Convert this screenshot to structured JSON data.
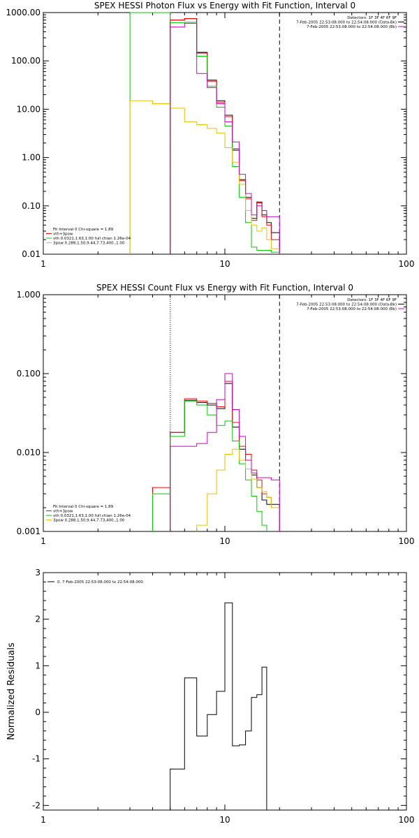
{
  "chart_data": [
    {
      "type": "line",
      "title": "SPEX HESSI Photon Flux vs Energy with Fit Function, Interval 0",
      "xscale": "log",
      "yscale": "log",
      "xlim": [
        1,
        100
      ],
      "ylim": [
        0.01,
        1000
      ],
      "xticks": [
        1,
        10,
        100
      ],
      "xtick_labels": [
        "1",
        "10",
        "100"
      ],
      "yticks": [
        0.01,
        0.1,
        1,
        10,
        100,
        1000
      ],
      "ytick_labels": [
        "0.01",
        "0.10",
        "1.00",
        "10.00",
        "100.00",
        "1000.00"
      ],
      "ylabel": "",
      "info_lines": [
        "Detectors: 1F 3F 4F 6F 9F",
        "7-Feb-2005 22:53:08.000 to 22:54:08.000 (Data-Bk)",
        "7-Feb-2005 22:53:08.000 to 22:54:08.000 (Bk)"
      ],
      "fit_text": [
        "Fit Interval 0   Chi-square = 1.89",
        "vth+3pow",
        "vth 0.0321,1.63,1.00  full chian 1.26e-04",
        "3pow 0.288,1.50,9.44,7.73,400.,1.00"
      ],
      "vlines": [
        {
          "x": 5,
          "style": "dotted"
        },
        {
          "x": 20,
          "style": "dashed"
        }
      ],
      "edges": [
        3,
        4,
        5,
        6,
        7,
        8,
        9,
        10,
        11,
        12,
        13,
        14,
        15,
        16,
        17,
        18,
        20
      ],
      "series": [
        {
          "name": "Data-Bk",
          "color": "#000000",
          "values": [
            null,
            null,
            700,
            750,
            150,
            40,
            15,
            7.5,
            1.5,
            0.35,
            0.15,
            0.055,
            0.12,
            0.065,
            0.045,
            0.028
          ]
        },
        {
          "name": "vth+3pow",
          "color": "#ff0000",
          "values": [
            null,
            null,
            700,
            750,
            145,
            38,
            14,
            7.0,
            1.4,
            0.33,
            0.14,
            0.05,
            0.115,
            0.06,
            0.04,
            0.02
          ]
        },
        {
          "name": "vth",
          "color": "#00cc00",
          "values": [
            1000,
            1000,
            620,
            630,
            125,
            30,
            11,
            4.5,
            0.65,
            0.15,
            0.045,
            0.014,
            0.012,
            0.012,
            0.012,
            0.011
          ]
        },
        {
          "name": "3pow",
          "color": "#e8c000",
          "values": [
            15,
            13,
            10.5,
            5.5,
            4.8,
            4.0,
            3.2,
            1.6,
            0.8,
            0.28,
            0.08,
            0.04,
            0.03,
            0.035,
            0.02,
            0.013
          ]
        },
        {
          "name": "Bk",
          "color": "#cc00cc",
          "values": [
            null,
            null,
            500,
            600,
            55,
            28,
            13,
            5.5,
            2.1,
            0.45,
            0.18,
            0.065,
            0.1,
            0.08,
            0.06,
            0.06
          ]
        }
      ]
    },
    {
      "type": "line",
      "title": "SPEX HESSI Count Flux vs Energy with Fit Function, Interval 0",
      "xscale": "log",
      "yscale": "log",
      "xlim": [
        1,
        100
      ],
      "ylim": [
        0.001,
        1
      ],
      "xticks": [
        1,
        10,
        100
      ],
      "xtick_labels": [
        "1",
        "10",
        "100"
      ],
      "yticks": [
        0.001,
        0.01,
        0.1,
        1
      ],
      "ytick_labels": [
        "0.001",
        "0.010",
        "0.100",
        "1.000"
      ],
      "ylabel": "",
      "info_lines": [
        "Detectors: 1F 3F 4F 6F 9F",
        "7-Feb-2005 22:53:08.000 to 22:54:08.000 (Data-Bk)",
        "7-Feb-2005 22:53:08.000 to 22:54:08.000 (Bk)"
      ],
      "fit_text": [
        "Fit Interval 0   Chi-square = 1.89",
        "vth+3pow",
        "vth 0.0321,1.63,1.00  full chian 1.26e-04",
        "3pow 0.288,1.50,9.44,7.73,400.,1.00"
      ],
      "vlines": [
        {
          "x": 5,
          "style": "dotted"
        },
        {
          "x": 20,
          "style": "dashed"
        }
      ],
      "edges": [
        3,
        4,
        5,
        6,
        7,
        8,
        9,
        10,
        11,
        12,
        13,
        14,
        15,
        16,
        17,
        18,
        20
      ],
      "series": [
        {
          "name": "Data-Bk",
          "color": "#000000",
          "values": [
            null,
            null,
            0.018,
            0.046,
            0.043,
            0.04,
            0.036,
            0.075,
            0.021,
            0.011,
            0.008,
            0.0052,
            0.0036,
            0.0025,
            0.0022,
            0.0022
          ]
        },
        {
          "name": "vth+3pow",
          "color": "#ff0000",
          "values": [
            null,
            0.0036,
            0.018,
            0.048,
            0.045,
            0.042,
            0.038,
            0.08,
            0.024,
            0.012,
            0.0095,
            0.006,
            0.0045,
            0.003,
            0.0027,
            0.002
          ]
        },
        {
          "name": "vth",
          "color": "#00cc00",
          "values": [
            null,
            0.003,
            0.016,
            0.045,
            0.04,
            0.03,
            0.022,
            0.025,
            0.014,
            0.0072,
            0.0045,
            0.0028,
            0.0018,
            0.0012,
            null,
            null
          ]
        },
        {
          "name": "3pow",
          "color": "#e8c000",
          "values": [
            null,
            null,
            null,
            null,
            0.0012,
            0.003,
            0.006,
            0.0095,
            0.011,
            0.008,
            0.0062,
            0.0046,
            0.0036,
            0.0032,
            0.0027,
            0.002
          ]
        },
        {
          "name": "Bk",
          "color": "#cc00cc",
          "values": [
            null,
            null,
            0.012,
            0.012,
            0.013,
            0.018,
            0.047,
            0.1,
            0.035,
            0.016,
            0.008,
            0.0055,
            0.0048,
            0.0048,
            0.0048,
            0.0045
          ]
        }
      ]
    },
    {
      "type": "line",
      "title": "",
      "xscale": "log",
      "yscale": "linear",
      "xlim": [
        1,
        100
      ],
      "ylim": [
        -2.1,
        3
      ],
      "xticks": [
        1,
        10,
        100
      ],
      "xtick_labels": [
        "1",
        "10",
        "100"
      ],
      "yticks": [
        -2,
        -1,
        0,
        1,
        2,
        3
      ],
      "ytick_labels": [
        "-2",
        "-1",
        "0",
        "1",
        "2",
        "3"
      ],
      "ylabel": "Normalized Residuals",
      "legend": "0.  7-Feb-2005 22:53:08.000 to 22:54:08.000",
      "edges": [
        5,
        6,
        7,
        8,
        9,
        10,
        11,
        12,
        13,
        14,
        15,
        16,
        17,
        18,
        20
      ],
      "series": [
        {
          "name": "0.  7-Feb-2005 22:53:08.000 to 22:54:08.000",
          "color": "#000000",
          "values": [
            -1.22,
            0.74,
            -0.51,
            -0.05,
            0.45,
            2.35,
            -0.72,
            -0.7,
            -0.4,
            0.32,
            0.38,
            0.97,
            null,
            null
          ]
        }
      ]
    }
  ]
}
